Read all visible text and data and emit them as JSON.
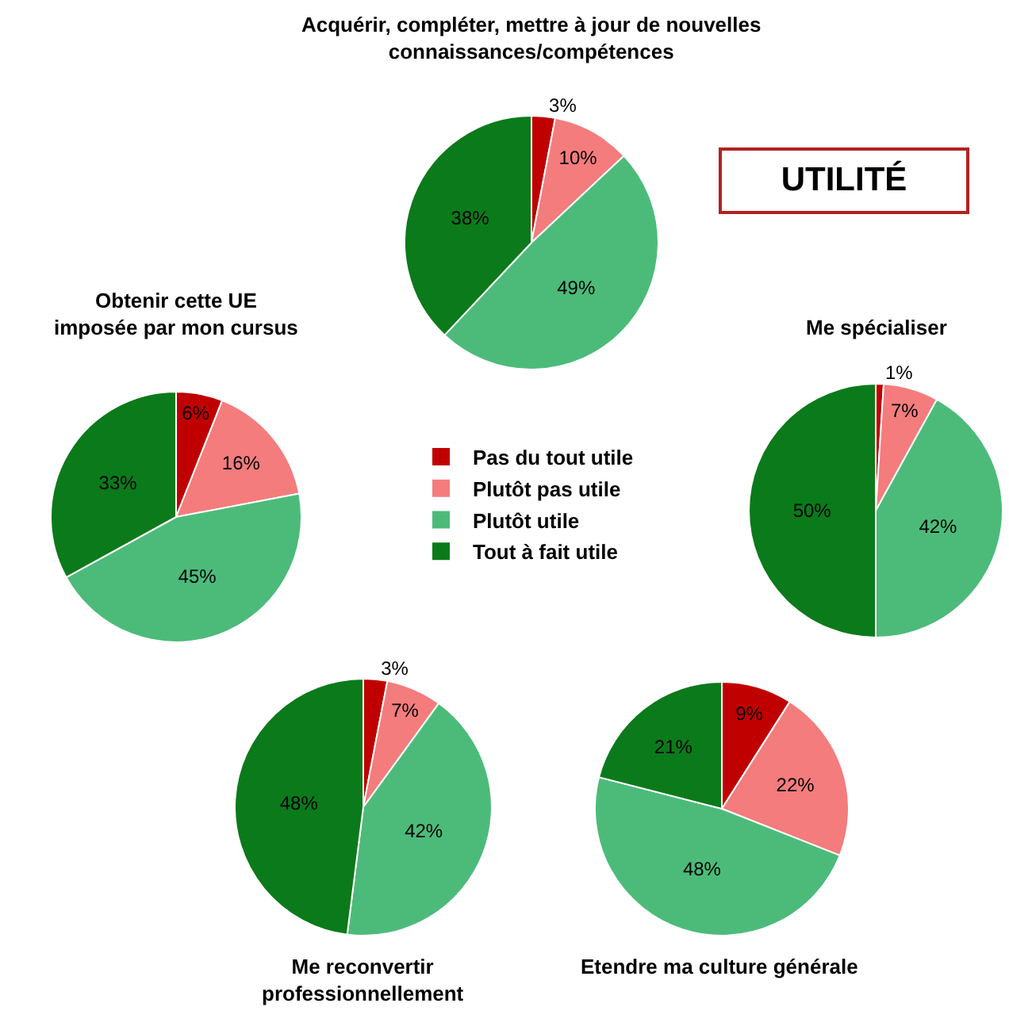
{
  "chart_data": [
    {
      "type": "pie",
      "title": "Acquérir, compléter, mettre à jour de nouvelles\nconnaissances/compétences",
      "categories": [
        "Pas du tout utile",
        "Plutôt pas utile",
        "Plutôt utile",
        "Tout à fait utile"
      ],
      "values": [
        3,
        10,
        49,
        38
      ],
      "value_labels": [
        "3%",
        "10%",
        "49%",
        "38%"
      ],
      "colors": [
        "#c00000",
        "#f47c7c",
        "#4cbb7a",
        "#0b7a1a"
      ],
      "legend": "bottom"
    },
    {
      "type": "other",
      "title": "UTILITÉ"
    },
    {
      "type": "pie",
      "title": "Obtenir cette UE\nimposée par mon cursus",
      "values": [
        6,
        16,
        45,
        33
      ],
      "value_labels": [
        "6%",
        "16%",
        "45%",
        "33%"
      ],
      "colors": [
        "#c00000",
        "#f47c7c",
        "#4cbb7a",
        "#0b7a1a"
      ]
    },
    {
      "type": "pie",
      "title": "Me spécialiser",
      "values": [
        1,
        7,
        42,
        50
      ],
      "value_labels": [
        "1%",
        "7%",
        "42%",
        "50%"
      ],
      "colors": [
        "#c00000",
        "#f47c7c",
        "#4cbb7a",
        "#0b7a1a"
      ]
    },
    {
      "type": "pie",
      "title": "Me reconvertir\nprofessionnellement",
      "values": [
        3,
        7,
        42,
        48
      ],
      "value_labels": [
        "3%",
        "7%",
        "42%",
        "48%"
      ],
      "colors": [
        "#c00000",
        "#f47c7c",
        "#4cbb7a",
        "#0b7a1a"
      ]
    },
    {
      "type": "pie",
      "title": "Etendre ma culture générale",
      "values": [
        9,
        22,
        48,
        21
      ],
      "value_labels": [
        "9%",
        "22%",
        "48%",
        "21%"
      ],
      "colors": [
        "#c00000",
        "#f47c7c",
        "#4cbb7a",
        "#0b7a1a"
      ]
    }
  ]
}
